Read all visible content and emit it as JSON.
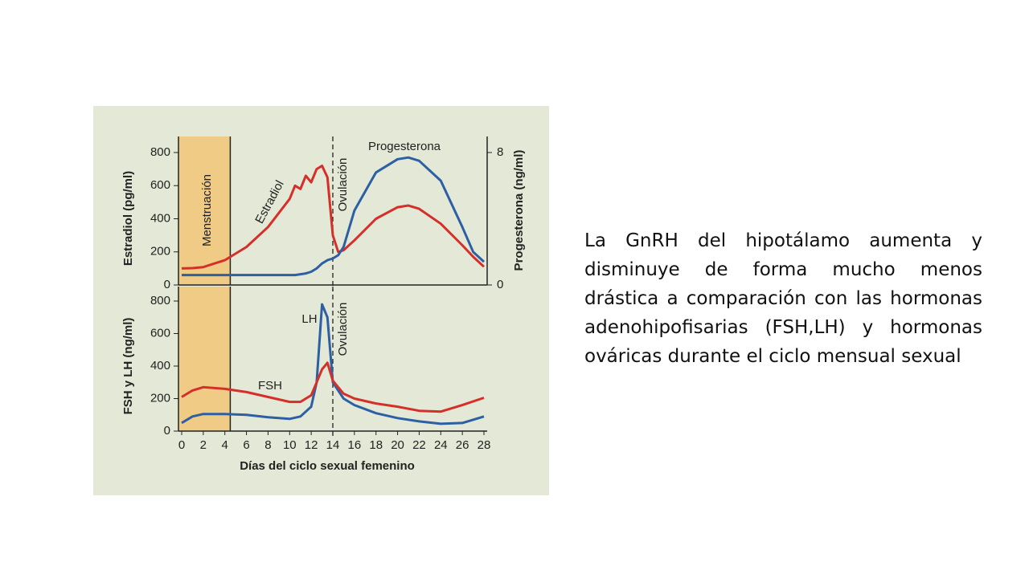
{
  "chart_data": [
    {
      "type": "line",
      "annotations": [
        "Menstruación",
        "Ovulación"
      ],
      "y_label": "Estradiol (pg/ml)",
      "y2_label": "Progesterona (ng/ml)",
      "x": [
        0,
        1,
        2,
        4,
        6,
        8,
        10,
        10.5,
        11,
        11.5,
        12,
        12.5,
        13,
        13.5,
        14,
        14.5,
        15,
        16,
        18,
        20,
        21,
        22,
        24,
        26,
        27,
        28
      ],
      "xlim": [
        0,
        28
      ],
      "ylim": [
        0,
        800
      ],
      "yticks": [
        0,
        200,
        400,
        600,
        800
      ],
      "y2lim": [
        0,
        8
      ],
      "y2ticks": [
        0,
        8
      ],
      "shaded_range": [
        0,
        4.5
      ],
      "ovulation_day": 14,
      "series": [
        {
          "name": "Estradiol",
          "color": "#d62f2a",
          "values": [
            100,
            102,
            108,
            150,
            230,
            350,
            520,
            600,
            580,
            660,
            620,
            700,
            720,
            650,
            300,
            200,
            210,
            270,
            400,
            470,
            480,
            460,
            370,
            240,
            170,
            110
          ]
        },
        {
          "name": "Progesterona",
          "color": "#2c5fa3",
          "axis": "y2",
          "values": [
            0.6,
            0.6,
            0.6,
            0.6,
            0.6,
            0.6,
            0.6,
            0.6,
            0.65,
            0.7,
            0.8,
            1.0,
            1.3,
            1.5,
            1.6,
            1.8,
            2.3,
            4.5,
            6.8,
            7.6,
            7.7,
            7.5,
            6.3,
            3.5,
            2.0,
            1.4
          ]
        }
      ]
    },
    {
      "type": "line",
      "annotations": [
        "Ovulación"
      ],
      "y_label": "FSH y LH (ng/ml)",
      "x_label": "Días del ciclo sexual femenino",
      "x": [
        0,
        1,
        2,
        4,
        6,
        8,
        10,
        11,
        12,
        12.5,
        13,
        13.5,
        14,
        15,
        16,
        18,
        20,
        22,
        24,
        26,
        28
      ],
      "xlim": [
        0,
        28
      ],
      "xticks": [
        0,
        2,
        4,
        6,
        8,
        10,
        12,
        14,
        16,
        18,
        20,
        22,
        24,
        26,
        28
      ],
      "ylim": [
        0,
        800
      ],
      "yticks": [
        0,
        200,
        400,
        600,
        800
      ],
      "shaded_range": [
        0,
        4.5
      ],
      "ovulation_day": 14,
      "series": [
        {
          "name": "LH",
          "color": "#2c5fa3",
          "values": [
            50,
            90,
            105,
            105,
            100,
            85,
            75,
            90,
            150,
            300,
            780,
            700,
            300,
            200,
            160,
            110,
            80,
            60,
            45,
            50,
            90
          ]
        },
        {
          "name": "FSH",
          "color": "#d62f2a",
          "values": [
            210,
            250,
            270,
            260,
            240,
            210,
            180,
            180,
            220,
            300,
            380,
            420,
            310,
            230,
            200,
            170,
            150,
            125,
            120,
            160,
            205
          ]
        }
      ]
    }
  ],
  "slide": {
    "text": "La GnRH del hipotálamo aumenta y disminuye de forma mucho menos drástica a comparación con las hormonas adenohipofisarias (FSH,LH) y hormonas ováricas durante el ciclo mensual sexual"
  }
}
